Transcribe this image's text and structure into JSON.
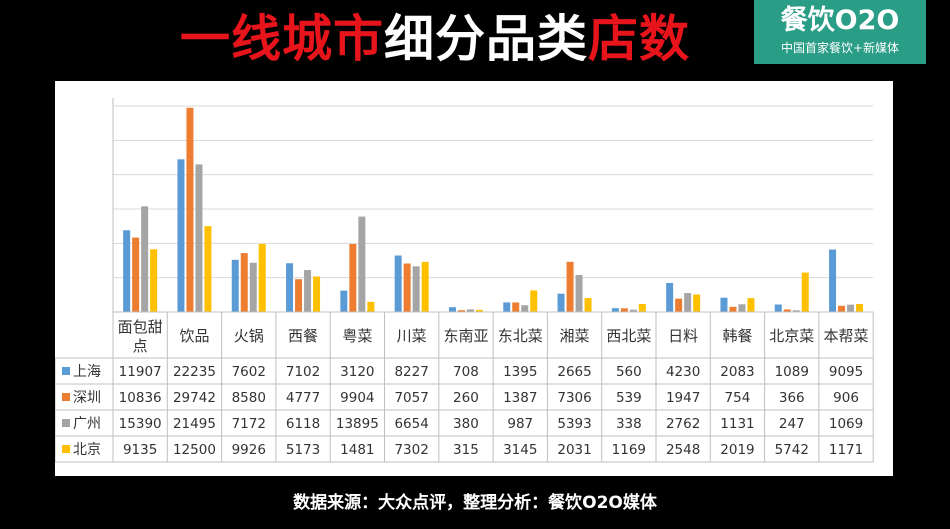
{
  "header": {
    "title_red1": "一线城市",
    "title_white": "细分品类",
    "title_red2": "店数",
    "logo_main": "餐饮O2O",
    "logo_sub": "中国首家餐饮+新媒体"
  },
  "footer": {
    "source": "数据来源：大众点评，整理分析：餐饮O2O媒体"
  },
  "chart_data": {
    "type": "bar",
    "categories": [
      "面包甜点",
      "饮品",
      "火锅",
      "西餐",
      "粤菜",
      "川菜",
      "东南亚",
      "东北菜",
      "湘菜",
      "西北菜",
      "日料",
      "韩餐",
      "北京菜",
      "本帮菜"
    ],
    "series": [
      {
        "name": "上海",
        "color": "#5b9bd5",
        "values": [
          11907,
          22235,
          7602,
          7102,
          3120,
          8227,
          708,
          1395,
          2665,
          560,
          4230,
          2083,
          1089,
          9095
        ]
      },
      {
        "name": "深圳",
        "color": "#ed7d31",
        "values": [
          10836,
          29742,
          8580,
          4777,
          9904,
          7057,
          260,
          1387,
          7306,
          539,
          1947,
          754,
          366,
          906
        ]
      },
      {
        "name": "广州",
        "color": "#a5a5a5",
        "values": [
          15390,
          21495,
          7172,
          6118,
          13895,
          6654,
          380,
          987,
          5393,
          338,
          2762,
          1131,
          247,
          1069
        ]
      },
      {
        "name": "北京",
        "color": "#ffc000",
        "values": [
          9135,
          12500,
          9926,
          5173,
          1481,
          7302,
          315,
          3145,
          2031,
          1169,
          2548,
          2019,
          5742,
          1171
        ]
      }
    ],
    "ylim": [
      0,
      30000
    ],
    "y_gridline_step": 5000,
    "y_tick_labels_shown": false,
    "grid": true,
    "legend": "data-table"
  }
}
